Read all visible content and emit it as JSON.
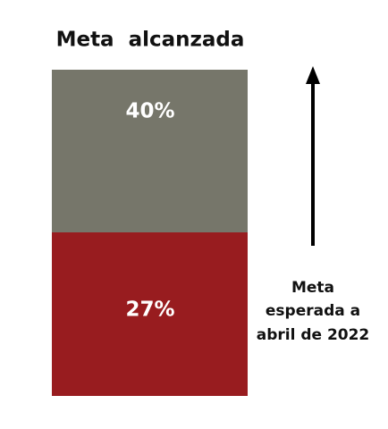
{
  "title": "Meta  alcanzada",
  "blocks": [
    {
      "label": "40%"
    },
    {
      "label": "27%"
    }
  ],
  "annotation": {
    "lines": [
      "Meta",
      "esperada a",
      "abril de 2022"
    ]
  }
}
